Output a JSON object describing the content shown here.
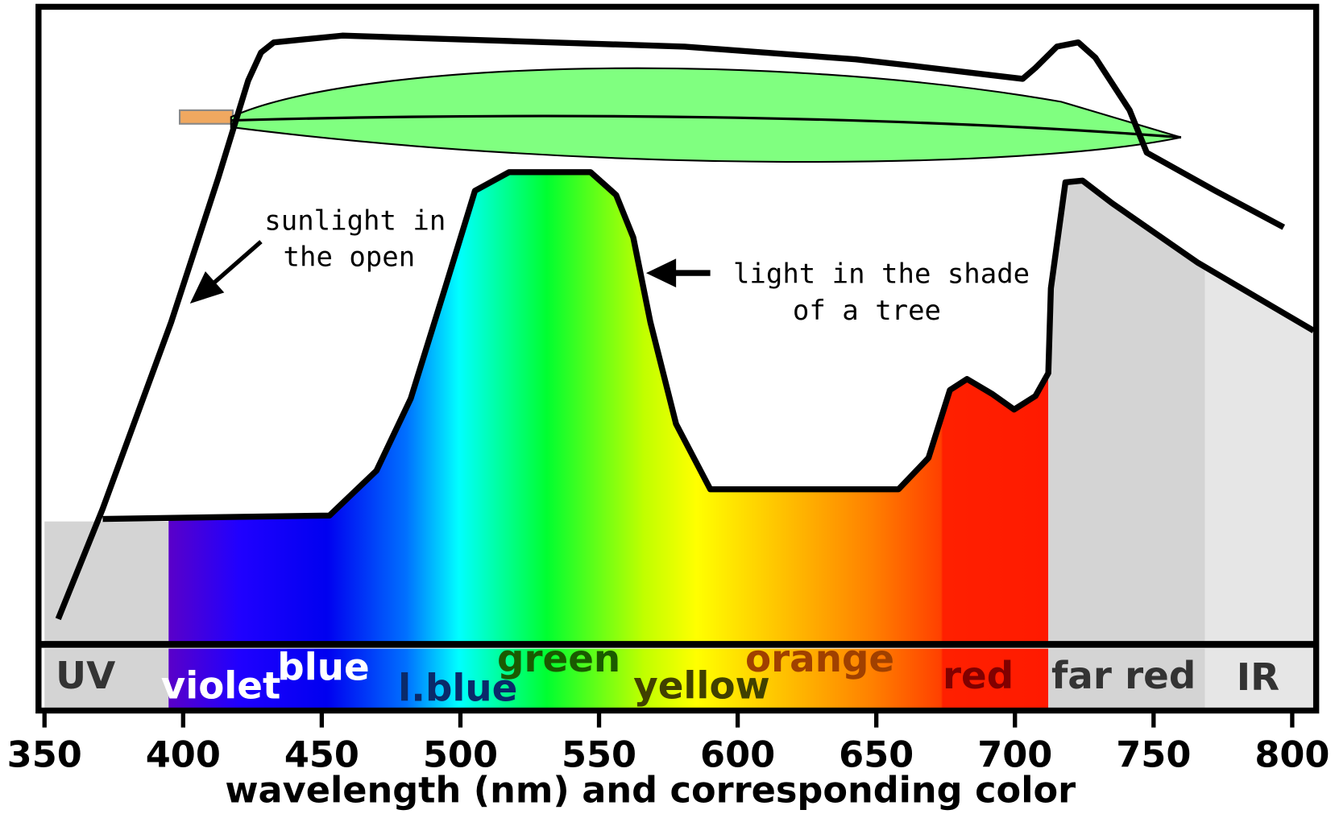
{
  "x_axis": {
    "title": "wavelength (nm) and corresponding color",
    "ticks": [
      350,
      400,
      450,
      500,
      550,
      600,
      650,
      700,
      750,
      800
    ]
  },
  "bands": [
    {
      "label": "UV"
    },
    {
      "label": "violet"
    },
    {
      "label": "blue"
    },
    {
      "label": "l.blue"
    },
    {
      "label": "green"
    },
    {
      "label": "yellow"
    },
    {
      "label": "orange"
    },
    {
      "label": "red"
    },
    {
      "label": "far red"
    },
    {
      "label": "IR"
    }
  ],
  "annotations": [
    {
      "lines": [
        "sunlight in",
        "the open"
      ]
    },
    {
      "lines": [
        "light in the shade",
        "of a tree"
      ]
    }
  ]
}
